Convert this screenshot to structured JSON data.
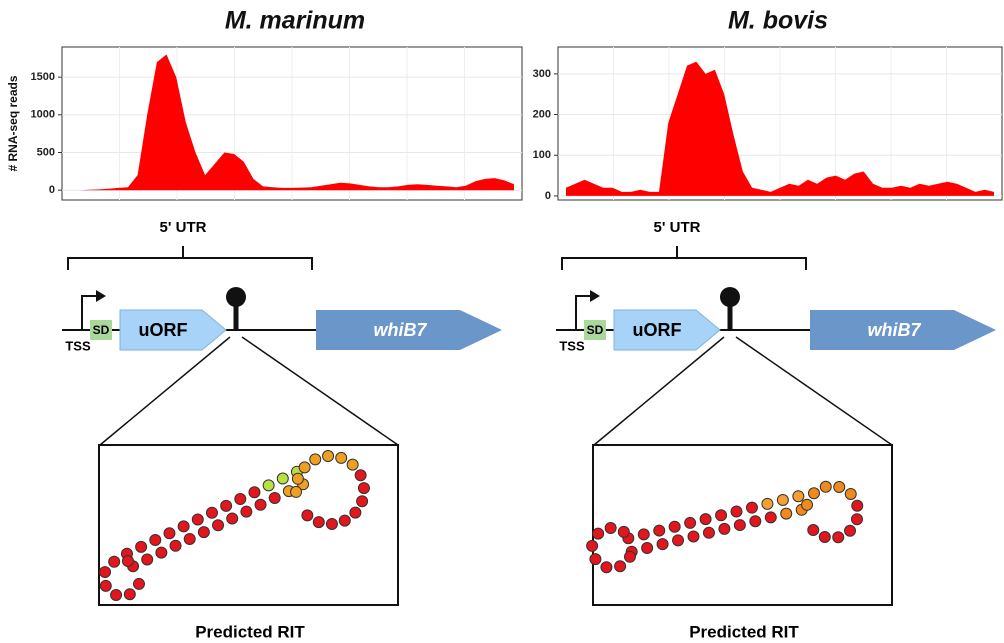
{
  "chart_data": [
    {
      "type": "area",
      "title": "M. marinum",
      "ylabel": "# RNA-seq reads",
      "color": "#ff0000",
      "values": [
        0,
        0,
        5,
        10,
        20,
        30,
        40,
        200,
        1000,
        1700,
        1800,
        1500,
        900,
        500,
        200,
        350,
        500,
        480,
        380,
        150,
        50,
        40,
        30,
        30,
        35,
        40,
        60,
        80,
        100,
        90,
        70,
        50,
        40,
        40,
        50,
        70,
        80,
        70,
        60,
        50,
        40,
        60,
        120,
        150,
        160,
        130,
        80
      ],
      "ylim": [
        -130,
        1900
      ],
      "yticks": [
        0,
        500,
        1000,
        1500
      ],
      "grid": true
    },
    {
      "type": "area",
      "title": "M. bovis",
      "color": "#ff0000",
      "values": [
        20,
        30,
        40,
        30,
        20,
        20,
        10,
        10,
        15,
        10,
        10,
        180,
        250,
        320,
        330,
        300,
        310,
        250,
        150,
        60,
        20,
        15,
        10,
        20,
        30,
        25,
        40,
        30,
        45,
        50,
        40,
        55,
        60,
        30,
        20,
        20,
        25,
        20,
        30,
        25,
        30,
        35,
        30,
        20,
        10,
        15,
        10
      ],
      "ylim": [
        -10,
        366
      ],
      "yticks": [
        0,
        100,
        200,
        300
      ],
      "grid": true
    }
  ],
  "diagram": {
    "panels": [
      {
        "utr_label": "5' UTR",
        "tss": "TSS",
        "sd": "SD",
        "uorf": "uORF",
        "gene": "whiB7",
        "caption": "Predicted RIT"
      },
      {
        "utr_label": "5' UTR",
        "tss": "TSS",
        "sd": "SD",
        "uorf": "uORF",
        "gene": "whiB7",
        "caption": "Predicted RIT"
      }
    ]
  }
}
